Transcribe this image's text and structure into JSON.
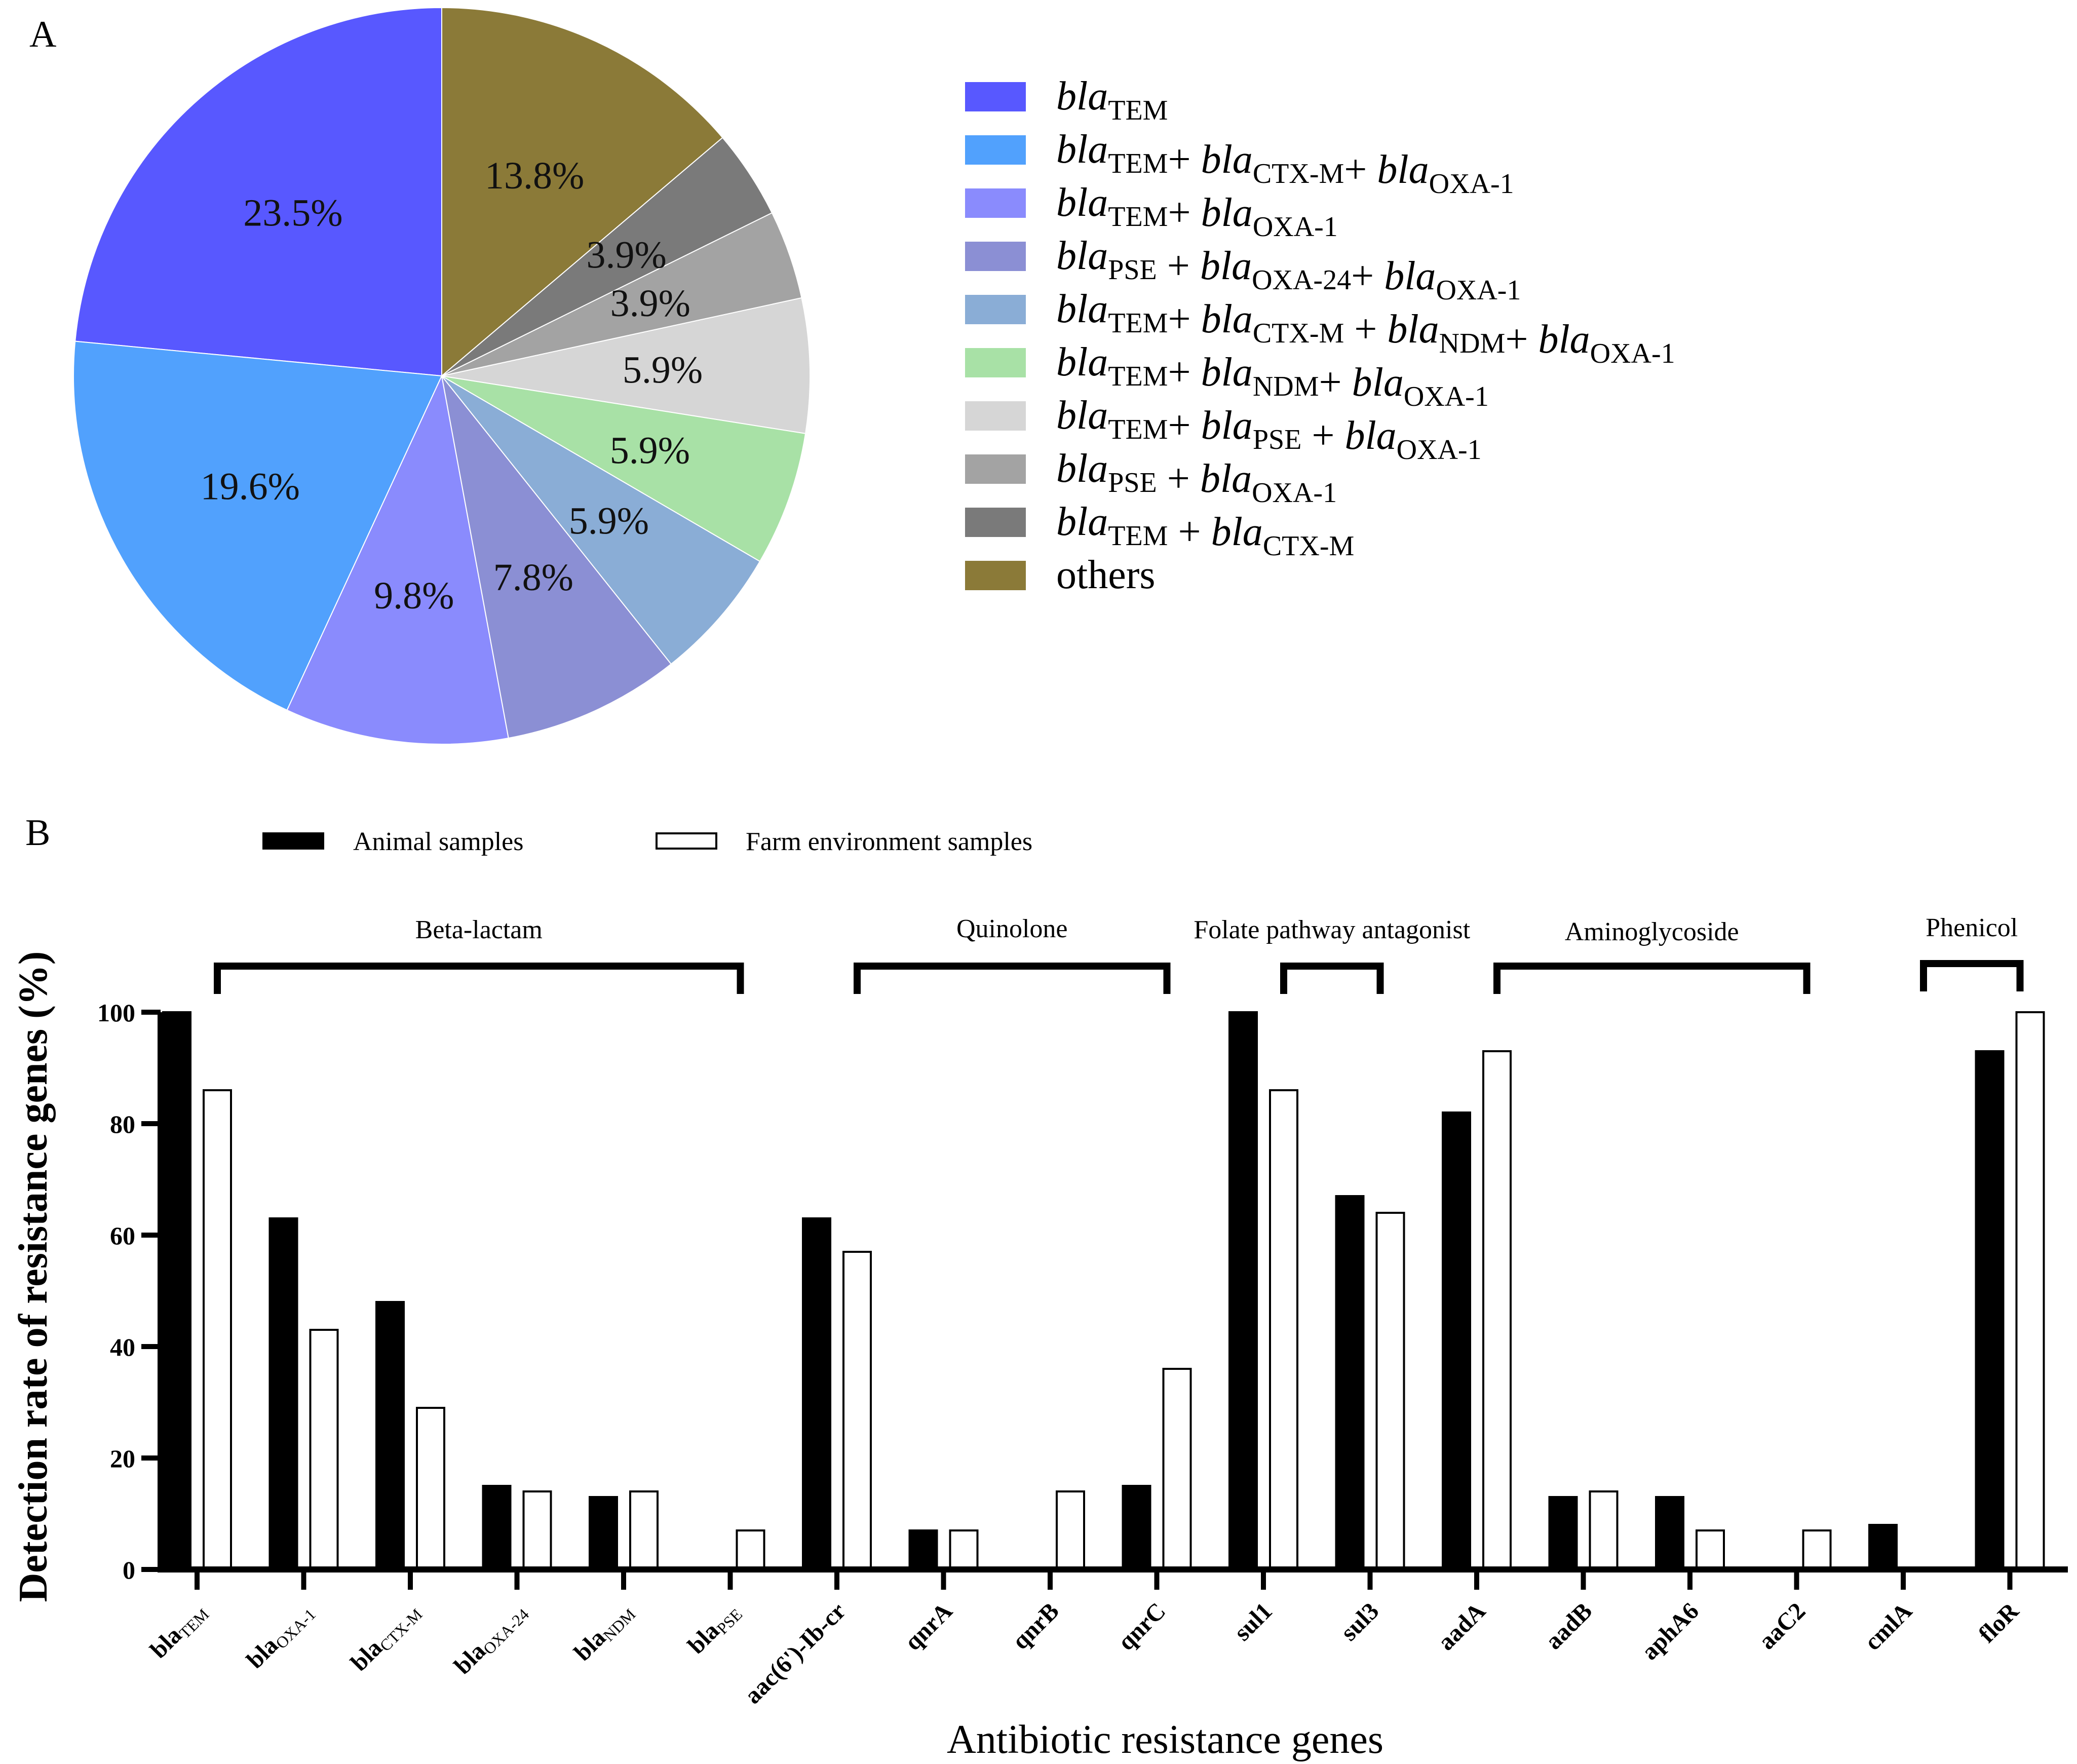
{
  "panel_a_label": "A",
  "panel_b_label": "B",
  "chart_data": [
    {
      "type": "pie",
      "panel": "A",
      "slices": [
        {
          "label": "blaTEM",
          "label_parts": [
            {
              "t": "bla",
              "i": true
            },
            {
              "t": "TEM",
              "s": true
            }
          ],
          "value": 23.5,
          "text": "23.5%",
          "color": "#5858ff"
        },
        {
          "label": "blaTEM+ blaCTX-M+ blaOXA-1",
          "label_parts": [
            {
              "t": "bla",
              "i": true
            },
            {
              "t": "TEM",
              "s": true
            },
            {
              "t": "+ "
            },
            {
              "t": "bla",
              "i": true
            },
            {
              "t": "CTX-M",
              "s": true
            },
            {
              "t": "+ "
            },
            {
              "t": "bla",
              "i": true
            },
            {
              "t": "OXA-1",
              "s": true
            }
          ],
          "value": 19.6,
          "text": "19.6%",
          "color": "#51a1fd"
        },
        {
          "label": "blaTEM+ blaOXA-1",
          "label_parts": [
            {
              "t": "bla",
              "i": true
            },
            {
              "t": "TEM",
              "s": true
            },
            {
              "t": "+ "
            },
            {
              "t": "bla",
              "i": true
            },
            {
              "t": "OXA-1",
              "s": true
            }
          ],
          "value": 9.8,
          "text": "9.8%",
          "color": "#8a8bfd"
        },
        {
          "label": "blaPSE + blaOXA-24+ blaOXA-1",
          "label_parts": [
            {
              "t": "bla",
              "i": true
            },
            {
              "t": "PSE",
              "s": true
            },
            {
              "t": " + "
            },
            {
              "t": "bla",
              "i": true
            },
            {
              "t": "OXA-24",
              "s": true
            },
            {
              "t": "+ "
            },
            {
              "t": "bla",
              "i": true
            },
            {
              "t": "OXA-1",
              "s": true
            }
          ],
          "value": 7.8,
          "text": "7.8%",
          "color": "#8b8fd4"
        },
        {
          "label": "blaTEM+ blaCTX-M + blaNDM+ blaOXA-1",
          "label_parts": [
            {
              "t": "bla",
              "i": true
            },
            {
              "t": "TEM",
              "s": true
            },
            {
              "t": "+ "
            },
            {
              "t": "bla",
              "i": true
            },
            {
              "t": "CTX-M",
              "s": true
            },
            {
              "t": " + "
            },
            {
              "t": "bla",
              "i": true
            },
            {
              "t": "NDM",
              "s": true
            },
            {
              "t": "+ "
            },
            {
              "t": "bla",
              "i": true
            },
            {
              "t": "OXA-1",
              "s": true
            }
          ],
          "value": 5.9,
          "text": "5.9%",
          "color": "#8aadd6"
        },
        {
          "label": "blaTEM+ blaNDM+ blaOXA-1",
          "label_parts": [
            {
              "t": "bla",
              "i": true
            },
            {
              "t": "TEM",
              "s": true
            },
            {
              "t": "+ "
            },
            {
              "t": "bla",
              "i": true
            },
            {
              "t": "NDM",
              "s": true
            },
            {
              "t": "+ "
            },
            {
              "t": "bla",
              "i": true
            },
            {
              "t": "OXA-1",
              "s": true
            }
          ],
          "value": 5.9,
          "text": "5.9%",
          "color": "#a8e1a6"
        },
        {
          "label": "blaTEM+ blaPSE + blaOXA-1",
          "label_parts": [
            {
              "t": "bla",
              "i": true
            },
            {
              "t": "TEM",
              "s": true
            },
            {
              "t": "+ "
            },
            {
              "t": "bla",
              "i": true
            },
            {
              "t": "PSE",
              "s": true
            },
            {
              "t": " + "
            },
            {
              "t": "bla",
              "i": true
            },
            {
              "t": "OXA-1",
              "s": true
            }
          ],
          "value": 5.9,
          "text": "5.9%",
          "color": "#d6d6d6"
        },
        {
          "label": "blaPSE + blaOXA-1",
          "label_parts": [
            {
              "t": "bla",
              "i": true
            },
            {
              "t": "PSE",
              "s": true
            },
            {
              "t": " + "
            },
            {
              "t": "bla",
              "i": true
            },
            {
              "t": "OXA-1",
              "s": true
            }
          ],
          "value": 3.9,
          "text": "3.9%",
          "color": "#a3a3a3"
        },
        {
          "label": "blaTEM + blaCTX-M",
          "label_parts": [
            {
              "t": "bla",
              "i": true
            },
            {
              "t": "TEM",
              "s": true
            },
            {
              "t": " + "
            },
            {
              "t": "bla",
              "i": true
            },
            {
              "t": "CTX-M",
              "s": true
            }
          ],
          "value": 3.9,
          "text": "3.9%",
          "color": "#7a7a7a"
        },
        {
          "label": "others",
          "label_parts": [
            {
              "t": "others"
            }
          ],
          "value": 13.8,
          "text": "13.8%",
          "color": "#8b7a38"
        }
      ],
      "legend_placement": "right"
    },
    {
      "type": "bar",
      "panel": "B",
      "ylabel": "Detection rate of resistance genes (%)",
      "xlabel": "Antibiotic resistance genes",
      "ylim": [
        0,
        100
      ],
      "yticks": [
        "0",
        "20",
        "40",
        "60",
        "80",
        "100"
      ],
      "legend": [
        {
          "name": "Animal samples",
          "fill": "#000000"
        },
        {
          "name": "Farm environment samples",
          "fill": "#ffffff"
        }
      ],
      "legend_placement": "top",
      "categories": [
        {
          "name": "blaTEM",
          "parts": [
            {
              "t": "bla"
            },
            {
              "t": "TEM",
              "s": true
            }
          ]
        },
        {
          "name": "blaOXA-1",
          "parts": [
            {
              "t": "bla"
            },
            {
              "t": "OXA-1",
              "s": true
            }
          ]
        },
        {
          "name": "blaCTX-M",
          "parts": [
            {
              "t": "bla"
            },
            {
              "t": "CTX-M",
              "s": true
            }
          ]
        },
        {
          "name": "blaOXA-24",
          "parts": [
            {
              "t": "bla"
            },
            {
              "t": "OXA-24",
              "s": true
            }
          ]
        },
        {
          "name": "blaNDM",
          "parts": [
            {
              "t": "bla"
            },
            {
              "t": "NDM",
              "s": true
            }
          ]
        },
        {
          "name": "blaPSE",
          "parts": [
            {
              "t": "bla"
            },
            {
              "t": "PSE",
              "s": true
            }
          ]
        },
        {
          "name": "aac(6')-Ib-cr",
          "parts": [
            {
              "t": "aac(6')-Ib-cr"
            }
          ]
        },
        {
          "name": "qnrA",
          "parts": [
            {
              "t": "qnrA"
            }
          ]
        },
        {
          "name": "qnrB",
          "parts": [
            {
              "t": "qnrB"
            }
          ]
        },
        {
          "name": "qnrC",
          "parts": [
            {
              "t": "qnrC"
            }
          ]
        },
        {
          "name": "sul1",
          "parts": [
            {
              "t": "sul1"
            }
          ]
        },
        {
          "name": "sul3",
          "parts": [
            {
              "t": "sul3"
            }
          ]
        },
        {
          "name": "aadA",
          "parts": [
            {
              "t": "aadA"
            }
          ]
        },
        {
          "name": "aadB",
          "parts": [
            {
              "t": "aadB"
            }
          ]
        },
        {
          "name": "aphA6",
          "parts": [
            {
              "t": "aphA6"
            }
          ]
        },
        {
          "name": "aaC2",
          "parts": [
            {
              "t": "aaC2"
            }
          ]
        },
        {
          "name": "cmlA",
          "parts": [
            {
              "t": "cmlA"
            }
          ]
        },
        {
          "name": "floR",
          "parts": [
            {
              "t": "floR"
            }
          ]
        }
      ],
      "series": [
        {
          "name": "Animal samples",
          "values": [
            100,
            63,
            48,
            15,
            13,
            0,
            63,
            7,
            0,
            15,
            100,
            67,
            82,
            13,
            13,
            0,
            8,
            93
          ]
        },
        {
          "name": "Farm environment samples",
          "values": [
            86,
            43,
            29,
            14,
            14,
            7,
            57,
            7,
            14,
            36,
            86,
            64,
            93,
            14,
            7,
            7,
            0,
            100
          ]
        }
      ],
      "groups": [
        {
          "label": "Beta-lactam",
          "from": 0,
          "to": 5
        },
        {
          "label": "Quinolone",
          "from": 6,
          "to": 9
        },
        {
          "label": "Folate pathway antagonist",
          "from": 10,
          "to": 11
        },
        {
          "label": "Aminoglycoside",
          "from": 12,
          "to": 15
        },
        {
          "label": "Phenicol",
          "from": 16,
          "to": 17
        }
      ]
    }
  ]
}
